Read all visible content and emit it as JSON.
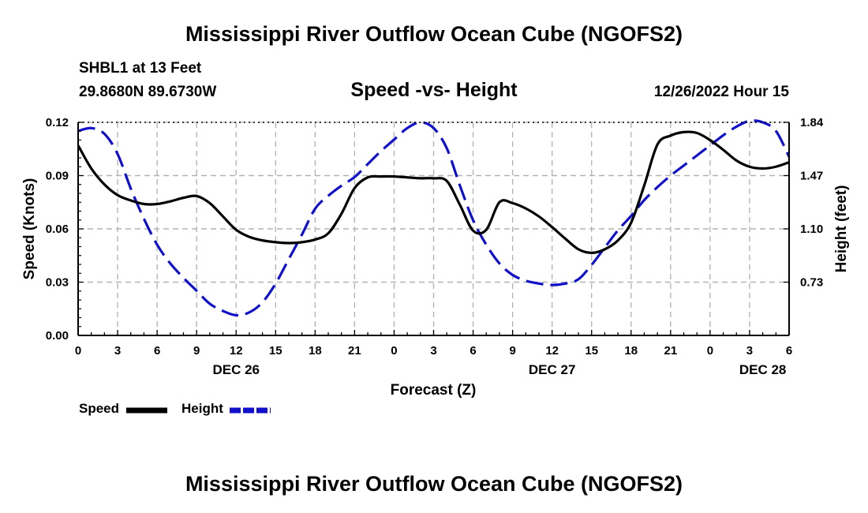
{
  "header": {
    "title": "Mississippi River Outflow Ocean Cube (NGOFS2)",
    "station": "SHBL1 at 13 Feet",
    "coordinates": "29.8680N  89.6730W",
    "subtitle": "Speed -vs- Height",
    "datetime": "12/26/2022 Hour 15"
  },
  "footer": {
    "title": "Mississippi River Outflow Ocean Cube (NGOFS2)"
  },
  "legend": {
    "speed_label": "Speed",
    "height_label": "Height"
  },
  "colors": {
    "speed": "#000000",
    "height": "#1010cc",
    "grid": "#b0b0b0"
  },
  "chart_data": {
    "type": "line",
    "xlabel": "Forecast (Z)",
    "ylabel": "Speed (Knots)",
    "y2label": "Height (feet)",
    "xlim": [
      0,
      54
    ],
    "ylim": [
      0,
      0.12
    ],
    "y2lim": [
      0.36,
      1.84
    ],
    "x_ticks": [
      0,
      3,
      6,
      9,
      12,
      15,
      18,
      21,
      24,
      27,
      30,
      33,
      36,
      39,
      42,
      45,
      48,
      51,
      54
    ],
    "x_tick_labels": [
      "0",
      "3",
      "6",
      "9",
      "12",
      "15",
      "18",
      "21",
      "0",
      "3",
      "6",
      "9",
      "12",
      "15",
      "18",
      "21",
      "0",
      "3",
      "6"
    ],
    "y_ticks": [
      0,
      0.03,
      0.06,
      0.09,
      0.12
    ],
    "y_tick_labels": [
      "0.00",
      "0.03",
      "0.06",
      "0.09",
      "0.12"
    ],
    "y2_ticks": [
      0.73,
      1.1,
      1.47,
      1.84
    ],
    "y2_tick_labels": [
      "0.73",
      "1.10",
      "1.47",
      "1.84"
    ],
    "date_labels": [
      {
        "label": "DEC 26",
        "x": 12
      },
      {
        "label": "DEC 27",
        "x": 36
      },
      {
        "label": "DEC 28",
        "x": 52
      }
    ],
    "series": [
      {
        "name": "Speed",
        "axis": "left",
        "x": [
          0,
          1,
          2,
          3,
          4,
          5,
          6,
          7,
          8,
          9,
          10,
          11,
          12,
          13,
          14,
          15,
          16,
          17,
          18,
          19,
          20,
          21,
          22,
          23,
          24,
          25,
          26,
          27,
          28,
          29,
          30,
          31,
          32,
          33,
          34,
          35,
          36,
          37,
          38,
          39,
          40,
          41,
          42,
          43,
          44,
          45,
          46,
          47,
          48,
          49,
          50,
          51,
          52,
          53,
          54
        ],
        "values": [
          0.107,
          0.094,
          0.085,
          0.079,
          0.076,
          0.074,
          0.074,
          0.0755,
          0.0775,
          0.0785,
          0.0745,
          0.067,
          0.0595,
          0.0555,
          0.0535,
          0.0525,
          0.052,
          0.0525,
          0.054,
          0.0575,
          0.0685,
          0.083,
          0.089,
          0.0895,
          0.0895,
          0.089,
          0.0885,
          0.0885,
          0.087,
          0.0735,
          0.059,
          0.0595,
          0.075,
          0.0745,
          0.0715,
          0.067,
          0.061,
          0.0545,
          0.0485,
          0.0465,
          0.0485,
          0.0535,
          0.0635,
          0.0845,
          0.1075,
          0.1125,
          0.1145,
          0.114,
          0.11,
          0.1045,
          0.0985,
          0.095,
          0.094,
          0.095,
          0.0975
        ]
      },
      {
        "name": "Height",
        "axis": "right",
        "x": [
          0,
          1,
          2,
          3,
          4,
          5,
          6,
          7,
          8,
          9,
          10,
          11,
          12,
          13,
          14,
          15,
          16,
          17,
          18,
          19,
          20,
          21,
          22,
          23,
          24,
          25,
          26,
          27,
          28,
          29,
          30,
          31,
          32,
          33,
          34,
          35,
          36,
          37,
          38,
          39,
          40,
          41,
          42,
          43,
          44,
          45,
          46,
          47,
          48,
          49,
          50,
          51,
          52,
          53,
          54
        ],
        "values": [
          1.78,
          1.8,
          1.76,
          1.62,
          1.38,
          1.17,
          0.99,
          0.86,
          0.76,
          0.67,
          0.58,
          0.53,
          0.5,
          0.52,
          0.59,
          0.72,
          0.89,
          1.06,
          1.24,
          1.33,
          1.4,
          1.46,
          1.55,
          1.64,
          1.72,
          1.8,
          1.84,
          1.8,
          1.66,
          1.4,
          1.16,
          0.99,
          0.86,
          0.78,
          0.74,
          0.72,
          0.71,
          0.72,
          0.75,
          0.85,
          0.97,
          1.09,
          1.19,
          1.3,
          1.39,
          1.47,
          1.54,
          1.61,
          1.68,
          1.75,
          1.81,
          1.85,
          1.84,
          1.78,
          1.6
        ]
      }
    ]
  }
}
